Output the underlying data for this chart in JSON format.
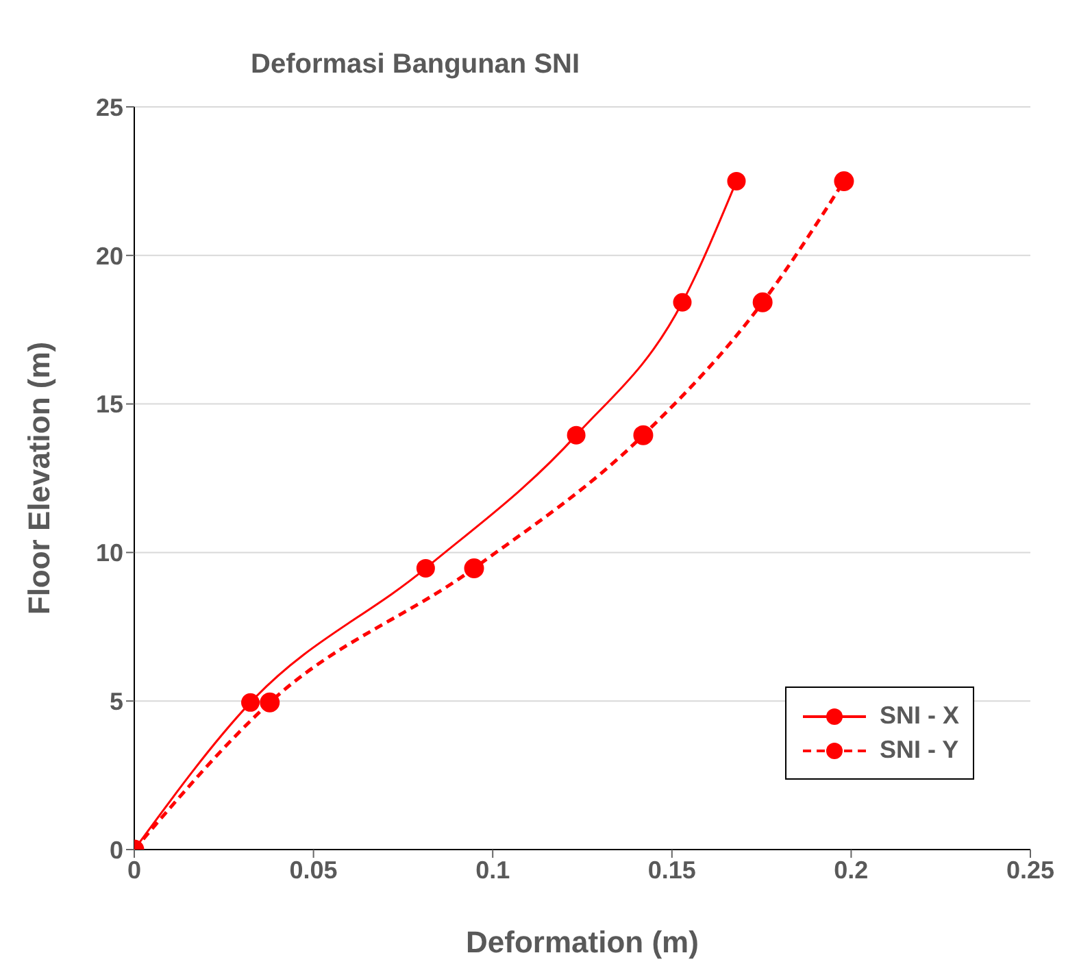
{
  "chart_data": {
    "type": "line",
    "title": "Deformasi Bangunan SNI",
    "xlabel": "Deformation (m)",
    "ylabel": "Floor Elevation (m)",
    "xlim": [
      0,
      0.25
    ],
    "xticks": [
      0,
      0.05,
      0.1,
      0.15,
      0.2,
      0.25
    ],
    "ylim": [
      0,
      25
    ],
    "yticks": [
      0,
      5,
      10,
      15,
      20,
      25
    ],
    "grid": "y",
    "legend": "bottom right",
    "marker": "circle",
    "series": [
      {
        "name": "SNI - X",
        "color": "#ff0000",
        "line_style": "solid",
        "x": [
          0,
          0.0324,
          0.0813,
          0.1233,
          0.1529,
          0.168
        ],
        "values": [
          0,
          4.95,
          9.47,
          13.95,
          18.42,
          22.5
        ]
      },
      {
        "name": "SNI - Y",
        "color": "#ff0000",
        "line_style": "dashed",
        "x": [
          0,
          0.0378,
          0.0948,
          0.142,
          0.1753,
          0.198
        ],
        "values": [
          0,
          4.95,
          9.47,
          13.95,
          18.42,
          22.5
        ]
      }
    ]
  }
}
